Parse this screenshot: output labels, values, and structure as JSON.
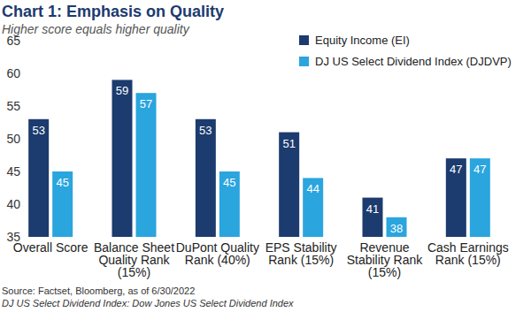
{
  "chart_data": {
    "type": "bar",
    "title": "Chart 1: Emphasis on Quality",
    "subtitle": "Higher score equals higher quality",
    "categories": [
      "Overall Score",
      "Balance Sheet Quality Rank (15%)",
      "DuPont Quality Rank (40%)",
      "EPS Stability Rank (15%)",
      "Revenue Stability Rank (15%)",
      "Cash Earnings Rank (15%)"
    ],
    "series": [
      {
        "name": "Equity Income (EI)",
        "color": "#1c3b6e",
        "values": [
          53,
          59,
          53,
          51,
          41,
          47
        ]
      },
      {
        "name": "DJ US Select Dividend Index (DJDVP)",
        "color": "#2aa5de",
        "values": [
          45,
          57,
          45,
          44,
          38,
          47
        ]
      }
    ],
    "ylim": [
      35,
      65
    ],
    "yticks": [
      35,
      40,
      45,
      50,
      55,
      60,
      65
    ],
    "grid": false,
    "legend": "top-right",
    "data_labels": true,
    "annotations": [
      "Source: Factset, Bloomberg, as of 6/30/2022",
      "DJ US Select Dividend Index: Dow Jones US Select Dividend Index"
    ]
  }
}
